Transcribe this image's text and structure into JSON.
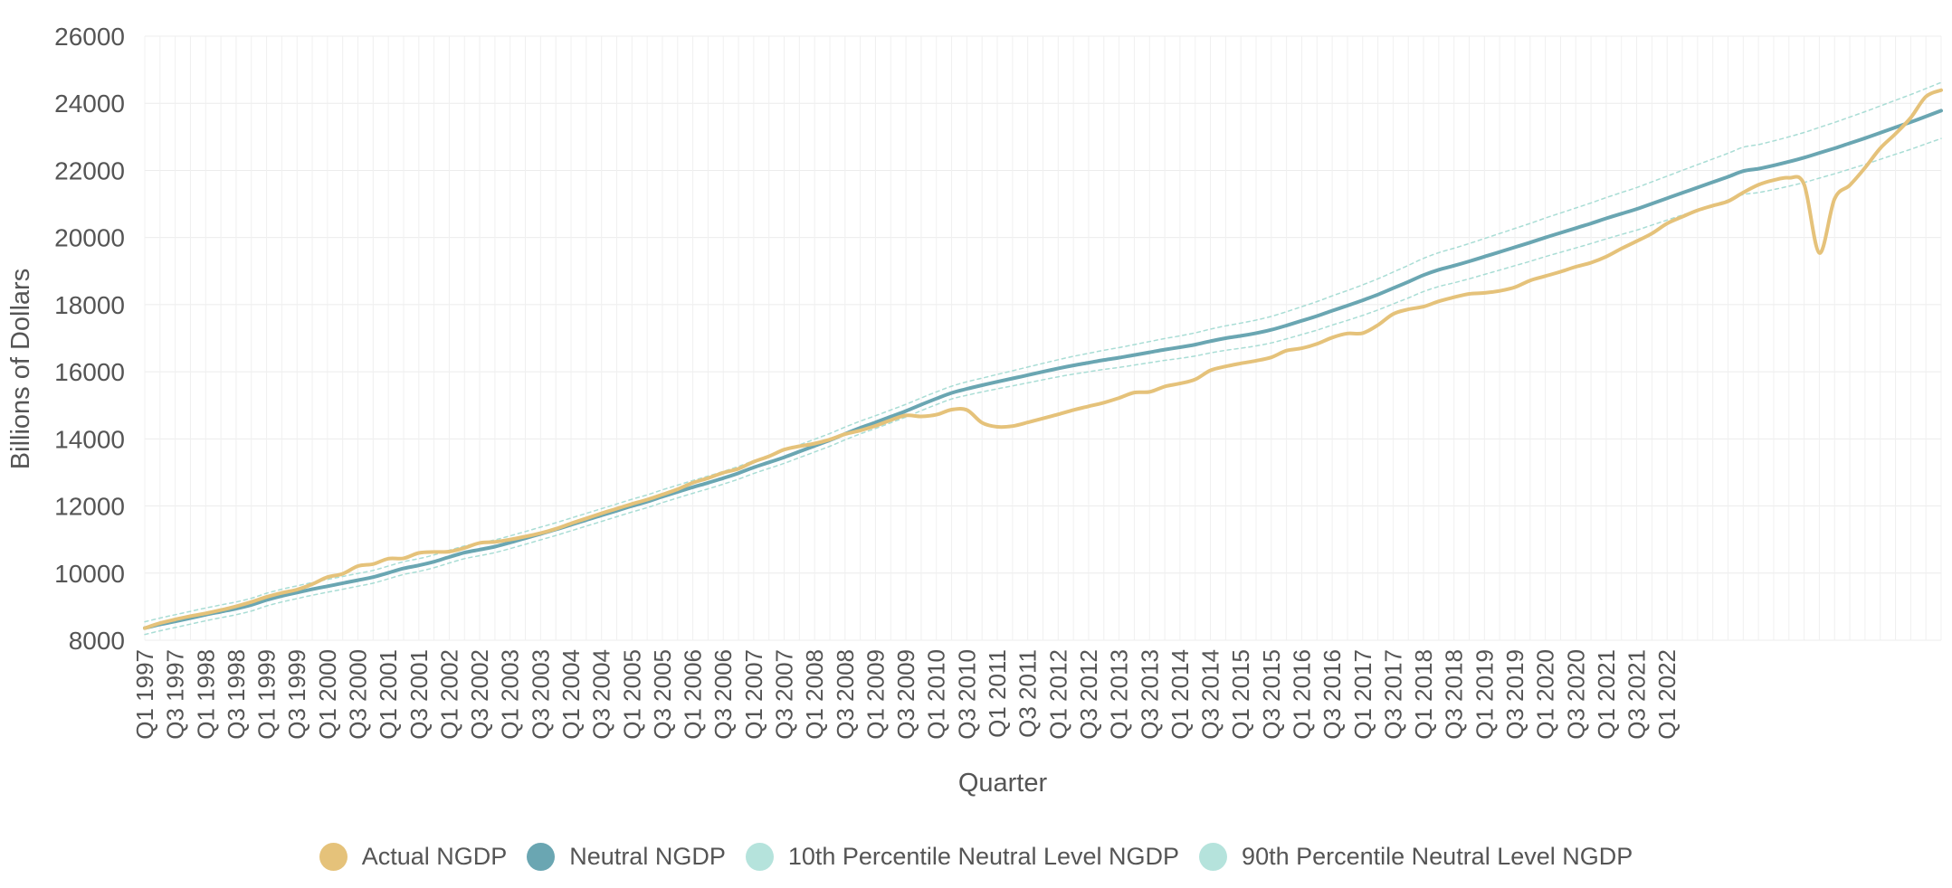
{
  "chart_data": {
    "type": "line",
    "title": "",
    "xlabel": "Quarter",
    "ylabel": "Billions of Dollars",
    "ylim": [
      8000,
      26000
    ],
    "yticks": [
      8000,
      10000,
      12000,
      14000,
      16000,
      18000,
      20000,
      22000,
      24000,
      26000
    ],
    "x_start": "Q1 1997",
    "x_end": "Q1 2022",
    "x_tick_labels": [
      "Q1 1997",
      "Q3 1997",
      "Q1 1998",
      "Q3 1998",
      "Q1 1999",
      "Q3 1999",
      "Q1 2000",
      "Q3 2000",
      "Q1 2001",
      "Q3 2001",
      "Q1 2002",
      "Q3 2002",
      "Q1 2003",
      "Q3 2003",
      "Q1 2004",
      "Q3 2004",
      "Q1 2005",
      "Q3 2005",
      "Q1 2006",
      "Q3 2006",
      "Q1 2007",
      "Q3 2007",
      "Q1 2008",
      "Q3 2008",
      "Q1 2009",
      "Q3 2009",
      "Q1 2010",
      "Q3 2010",
      "Q1 2011",
      "Q3 2011",
      "Q1 2012",
      "Q3 2012",
      "Q1 2013",
      "Q3 2013",
      "Q1 2014",
      "Q3 2014",
      "Q1 2015",
      "Q3 2015",
      "Q1 2016",
      "Q3 2016",
      "Q1 2017",
      "Q3 2017",
      "Q1 2018",
      "Q3 2018",
      "Q1 2019",
      "Q3 2019",
      "Q1 2020",
      "Q3 2020",
      "Q1 2021",
      "Q3 2021",
      "Q1 2022"
    ],
    "grid": true,
    "legend_position": "bottom-center",
    "series": [
      {
        "name": "Actual NGDP",
        "color": "#e5c27a",
        "style": "solid",
        "values": [
          8360,
          8510,
          8620,
          8720,
          8800,
          8900,
          9010,
          9140,
          9290,
          9410,
          9510,
          9670,
          9880,
          9980,
          10210,
          10270,
          10430,
          10440,
          10600,
          10630,
          10640,
          10750,
          10900,
          10930,
          11000,
          11090,
          11190,
          11320,
          11480,
          11630,
          11780,
          11920,
          12060,
          12190,
          12340,
          12500,
          12690,
          12830,
          12990,
          13110,
          13320,
          13480,
          13680,
          13780,
          13860,
          13980,
          14140,
          14250,
          14390,
          14560,
          14700,
          14670,
          14720,
          14870,
          14860,
          14480,
          14360,
          14380,
          14490,
          14610,
          14730,
          14860,
          14970,
          15080,
          15220,
          15380,
          15400,
          15560,
          15650,
          15770,
          16040,
          16160,
          16250,
          16330,
          16430,
          16630,
          16700,
          16830,
          17020,
          17140,
          17150,
          17390,
          17720,
          17860,
          17940,
          18100,
          18220,
          18320,
          18350,
          18410,
          18520,
          18720,
          18850,
          18980,
          19130,
          19250,
          19430,
          19670,
          19890,
          20120,
          20420,
          20620,
          20810,
          20950,
          21080,
          21340,
          21570,
          21710,
          21780,
          21580,
          19540,
          21150,
          21560,
          22080,
          22660,
          23090,
          23570,
          24200,
          24390
        ]
      },
      {
        "name": "Neutral NGDP",
        "color": "#6aa6b2",
        "style": "solid",
        "values": [
          8360,
          8470,
          8560,
          8660,
          8760,
          8850,
          8940,
          9050,
          9200,
          9320,
          9420,
          9520,
          9610,
          9700,
          9790,
          9880,
          10010,
          10140,
          10230,
          10340,
          10480,
          10610,
          10700,
          10790,
          10910,
          11040,
          11170,
          11300,
          11440,
          11580,
          11720,
          11860,
          12000,
          12130,
          12280,
          12420,
          12560,
          12690,
          12830,
          12980,
          13150,
          13300,
          13450,
          13620,
          13790,
          13960,
          14150,
          14330,
          14490,
          14660,
          14830,
          15020,
          15200,
          15370,
          15490,
          15600,
          15700,
          15800,
          15900,
          16000,
          16100,
          16190,
          16270,
          16350,
          16420,
          16500,
          16580,
          16660,
          16730,
          16810,
          16910,
          17000,
          17070,
          17150,
          17250,
          17380,
          17520,
          17660,
          17820,
          17970,
          18130,
          18300,
          18490,
          18680,
          18880,
          19040,
          19160,
          19290,
          19430,
          19570,
          19710,
          19850,
          20000,
          20140,
          20280,
          20420,
          20570,
          20710,
          20850,
          21010,
          21170,
          21330,
          21490,
          21650,
          21810,
          21980,
          22050,
          22150,
          22260,
          22380,
          22520,
          22660,
          22810,
          22960,
          23120,
          23280,
          23440,
          23610,
          23780
        ]
      },
      {
        "name": "10th Percentile Neutral Level NGDP",
        "color": "#a9ddd5",
        "style": "dashed",
        "values": [
          8170,
          8280,
          8380,
          8480,
          8580,
          8670,
          8760,
          8870,
          9020,
          9140,
          9240,
          9340,
          9430,
          9520,
          9610,
          9700,
          9830,
          9960,
          10050,
          10160,
          10300,
          10430,
          10520,
          10610,
          10730,
          10860,
          10990,
          11120,
          11260,
          11400,
          11540,
          11680,
          11820,
          11950,
          12100,
          12240,
          12380,
          12510,
          12650,
          12800,
          12970,
          13120,
          13270,
          13440,
          13610,
          13780,
          13970,
          14150,
          14310,
          14480,
          14650,
          14840,
          15020,
          15190,
          15300,
          15400,
          15490,
          15580,
          15670,
          15760,
          15850,
          15930,
          16000,
          16070,
          16130,
          16200,
          16270,
          16340,
          16400,
          16470,
          16560,
          16640,
          16700,
          16770,
          16860,
          16980,
          17110,
          17240,
          17390,
          17530,
          17680,
          17840,
          18020,
          18200,
          18390,
          18540,
          18650,
          18770,
          18900,
          19030,
          19160,
          19290,
          19430,
          19560,
          19690,
          19820,
          19960,
          20090,
          20220,
          20370,
          20520,
          20670,
          20820,
          20970,
          21120,
          21280,
          21340,
          21430,
          21530,
          21640,
          21770,
          21900,
          22040,
          22180,
          22330,
          22480,
          22630,
          22790,
          22950
        ]
      },
      {
        "name": "90th Percentile Neutral Level NGDP",
        "color": "#a9ddd5",
        "style": "dashed",
        "values": [
          8550,
          8660,
          8760,
          8860,
          8960,
          9050,
          9140,
          9250,
          9400,
          9520,
          9620,
          9720,
          9810,
          9900,
          9990,
          10080,
          10210,
          10340,
          10430,
          10540,
          10680,
          10810,
          10900,
          10990,
          11110,
          11240,
          11370,
          11500,
          11640,
          11780,
          11920,
          12060,
          12200,
          12330,
          12480,
          12620,
          12760,
          12890,
          13030,
          13180,
          13350,
          13500,
          13650,
          13820,
          13990,
          14160,
          14350,
          14530,
          14690,
          14860,
          15030,
          15220,
          15400,
          15570,
          15700,
          15810,
          15920,
          16030,
          16140,
          16250,
          16360,
          16460,
          16550,
          16640,
          16720,
          16810,
          16900,
          16990,
          17070,
          17160,
          17270,
          17370,
          17450,
          17540,
          17650,
          17790,
          17940,
          18090,
          18260,
          18420,
          18590,
          18770,
          18970,
          19170,
          19380,
          19550,
          19680,
          19820,
          19970,
          20120,
          20270,
          20420,
          20580,
          20730,
          20880,
          21030,
          21190,
          21340,
          21490,
          21660,
          21830,
          22000,
          22170,
          22340,
          22510,
          22690,
          22770,
          22880,
          23000,
          23130,
          23280,
          23430,
          23590,
          23750,
          23920,
          24090,
          24260,
          24440,
          24620
        ]
      }
    ]
  },
  "legend": {
    "items": [
      {
        "label": "Actual NGDP",
        "color": "#e5c27a"
      },
      {
        "label": "Neutral NGDP",
        "color": "#6aa6b2"
      },
      {
        "label": "10th Percentile Neutral Level NGDP",
        "color": "#b5e3dc"
      },
      {
        "label": "90th Percentile Neutral Level NGDP",
        "color": "#b5e3dc"
      }
    ]
  }
}
